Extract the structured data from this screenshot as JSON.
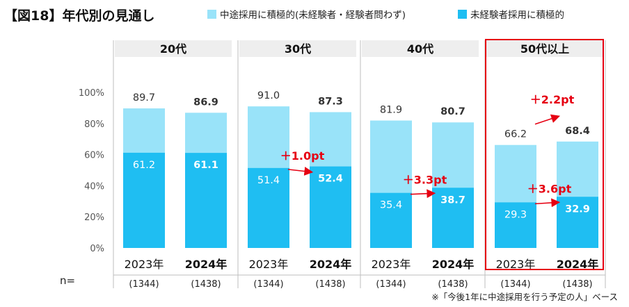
{
  "header": {
    "title": "【図18】年代別の見通し",
    "legend": [
      {
        "label": "中途採用に積極的(未経験者・経験者問わず)",
        "color": "#99e3f9"
      },
      {
        "label": "未経験者採用に積極的",
        "color": "#1fbef2"
      }
    ]
  },
  "footnote": "※「今後1年に中途採用を行う予定の人」ベース",
  "chart_data": {
    "type": "bar",
    "yticks": [
      "100%",
      "80%",
      "60%",
      "40%",
      "20%",
      "0%"
    ],
    "ylim": [
      0,
      100
    ],
    "n_label": "n=",
    "groups": [
      {
        "label": "20代",
        "highlight": false,
        "bars": [
          {
            "year": "2023年",
            "bold": false,
            "n": "(1344)",
            "total": 89.7,
            "inexperienced": 61.2
          },
          {
            "year": "2024年",
            "bold": true,
            "n": "(1438)",
            "total": 86.9,
            "inexperienced": 61.1
          }
        ]
      },
      {
        "label": "30代",
        "highlight": false,
        "bars": [
          {
            "year": "2023年",
            "bold": false,
            "n": "(1344)",
            "total": 91.0,
            "inexperienced": 51.4
          },
          {
            "year": "2024年",
            "bold": true,
            "n": "(1438)",
            "total": 87.3,
            "inexperienced": 52.4
          }
        ]
      },
      {
        "label": "40代",
        "highlight": false,
        "bars": [
          {
            "year": "2023年",
            "bold": false,
            "n": "(1344)",
            "total": 81.9,
            "inexperienced": 35.4
          },
          {
            "year": "2024年",
            "bold": true,
            "n": "(1438)",
            "total": 80.7,
            "inexperienced": 38.7
          }
        ]
      },
      {
        "label": "50代以上",
        "highlight": true,
        "bars": [
          {
            "year": "2023年",
            "bold": false,
            "n": "(1344)",
            "total": 66.2,
            "inexperienced": 29.3
          },
          {
            "year": "2024年",
            "bold": true,
            "n": "(1438)",
            "total": 68.4,
            "inexperienced": 32.9
          }
        ]
      }
    ],
    "annotations": [
      {
        "group": 1,
        "series": "inexperienced",
        "text": "＋1.0pt"
      },
      {
        "group": 2,
        "series": "inexperienced",
        "text": "＋3.3pt"
      },
      {
        "group": 3,
        "series": "total",
        "text": "＋2.2pt"
      },
      {
        "group": 3,
        "series": "inexperienced",
        "text": "＋3.6pt"
      }
    ],
    "colors": {
      "total": "#99e3f9",
      "inexperienced": "#1fbef2",
      "highlight": "#e60012",
      "annotation": "#e60012",
      "header_bg": "#eeeeee"
    }
  }
}
